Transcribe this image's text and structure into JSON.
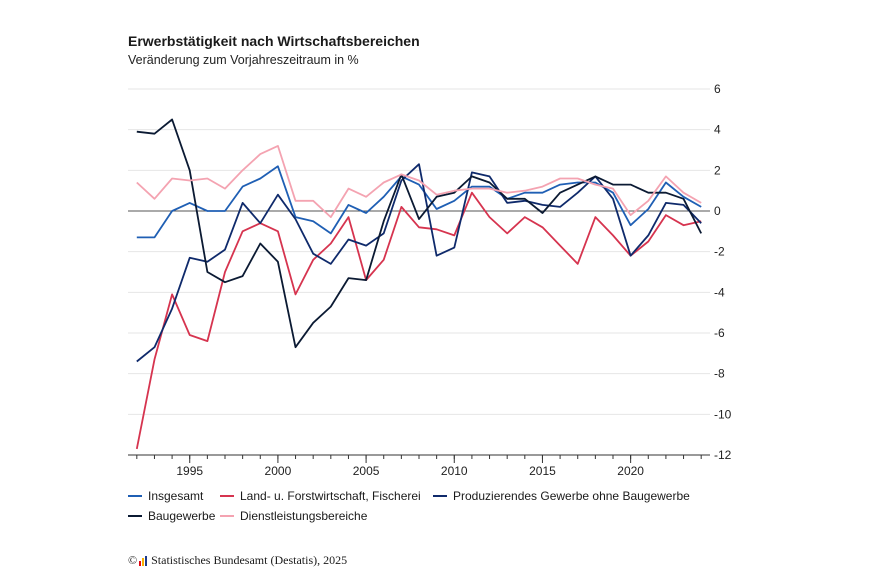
{
  "title": "Erwerbstätigkeit nach Wirtschaftsbereichen",
  "subtitle": "Veränderung zum Vorjahreszeitraum in %",
  "source": {
    "copyright": "©",
    "text": "Statistisches Bundesamt (Destatis), 2025",
    "logo_colors": [
      "#e30613",
      "#f9b000",
      "#1d3a8a"
    ]
  },
  "chart_data": {
    "type": "line",
    "grid": "horizontal",
    "legend_position": "bottom",
    "xlim": [
      1991.5,
      2024.5
    ],
    "ylim": [
      -12,
      6
    ],
    "x_ticks": [
      1995,
      2000,
      2005,
      2010,
      2015,
      2020
    ],
    "x_tick_labels": [
      "1995",
      "2000",
      "2005",
      "2010",
      "2015",
      "2020"
    ],
    "y_ticks": [
      6,
      4,
      2,
      0,
      -2,
      -4,
      -6,
      -8,
      -10,
      -12
    ],
    "y_tick_labels": [
      "6",
      "4",
      "2",
      "0",
      "-2",
      "-4",
      "-6",
      "-8",
      "-10",
      "-12"
    ],
    "x": [
      1992,
      1993,
      1994,
      1995,
      1996,
      1997,
      1998,
      1999,
      2000,
      2001,
      2002,
      2003,
      2004,
      2005,
      2006,
      2007,
      2008,
      2009,
      2010,
      2011,
      2012,
      2013,
      2014,
      2015,
      2016,
      2017,
      2018,
      2019,
      2020,
      2021,
      2022,
      2023,
      2024
    ],
    "series": [
      {
        "name": "Insgesamt",
        "color": "#1f5fb4",
        "values": [
          -1.3,
          -1.3,
          0.0,
          0.4,
          0.0,
          0.0,
          1.2,
          1.6,
          2.2,
          -0.3,
          -0.5,
          -1.1,
          0.3,
          -0.1,
          0.7,
          1.7,
          1.3,
          0.1,
          0.5,
          1.2,
          1.2,
          0.6,
          0.9,
          0.9,
          1.3,
          1.4,
          1.4,
          0.9,
          -0.7,
          0.1,
          1.4,
          0.7,
          0.2
        ]
      },
      {
        "name": "Land- u. Forstwirtschaft, Fischerei",
        "color": "#d6344f",
        "values": [
          -11.7,
          -7.3,
          -4.1,
          -6.1,
          -6.4,
          -3.0,
          -1.0,
          -0.6,
          -1.0,
          -4.1,
          -2.4,
          -1.6,
          -0.3,
          -3.4,
          -2.4,
          0.2,
          -0.8,
          -0.9,
          -1.2,
          0.9,
          -0.3,
          -1.1,
          -0.3,
          -0.8,
          -1.7,
          -2.6,
          -0.3,
          -1.2,
          -2.2,
          -1.5,
          -0.2,
          -0.7,
          -0.5
        ]
      },
      {
        "name": "Produzierendes Gewerbe ohne Baugewerbe",
        "color": "#0f2a6b",
        "values": [
          -7.4,
          -6.7,
          -4.8,
          -2.3,
          -2.5,
          -1.9,
          0.4,
          -0.6,
          0.8,
          -0.4,
          -2.1,
          -2.6,
          -1.4,
          -1.7,
          -1.1,
          1.5,
          2.3,
          -2.2,
          -1.8,
          1.9,
          1.7,
          0.4,
          0.5,
          0.3,
          0.2,
          0.9,
          1.7,
          0.6,
          -2.2,
          -1.2,
          0.4,
          0.3,
          -0.6
        ]
      },
      {
        "name": "Baugewerbe",
        "color": "#0b1a33",
        "values": [
          3.9,
          3.8,
          4.5,
          2.0,
          -3.0,
          -3.5,
          -3.2,
          -1.6,
          -2.5,
          -6.7,
          -5.5,
          -4.7,
          -3.3,
          -3.4,
          -0.5,
          1.8,
          -0.4,
          0.7,
          0.9,
          1.7,
          1.4,
          0.6,
          0.6,
          -0.1,
          0.9,
          1.3,
          1.7,
          1.3,
          1.3,
          0.9,
          0.9,
          0.6,
          -1.1
        ]
      },
      {
        "name": "Dienstleistungsbereiche",
        "color": "#f4a3b1",
        "values": [
          1.4,
          0.6,
          1.6,
          1.5,
          1.6,
          1.1,
          2.0,
          2.8,
          3.2,
          0.5,
          0.5,
          -0.3,
          1.1,
          0.7,
          1.4,
          1.8,
          1.5,
          0.8,
          1.0,
          1.1,
          1.1,
          0.9,
          1.0,
          1.2,
          1.6,
          1.6,
          1.3,
          1.1,
          -0.2,
          0.5,
          1.7,
          0.9,
          0.4
        ]
      }
    ]
  }
}
